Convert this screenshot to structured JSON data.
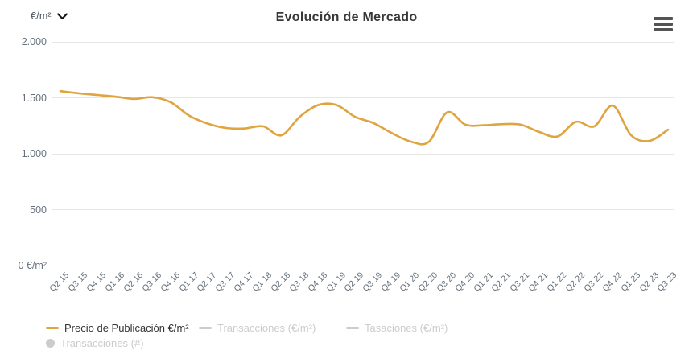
{
  "header": {
    "unit_selector": "€/m²"
  },
  "chart_data": {
    "type": "line",
    "title": "Evolución de Mercado",
    "xlabel": "",
    "ylabel": "€/m²",
    "grid": true,
    "legend_position": "bottom-left",
    "x_label_rotation": -45,
    "ylim": [
      0,
      2000
    ],
    "yticks": [
      {
        "value": 2000,
        "label": "2.000"
      },
      {
        "value": 1500,
        "label": "1.500"
      },
      {
        "value": 1000,
        "label": "1.000"
      },
      {
        "value": 500,
        "label": "500"
      },
      {
        "value": 0,
        "label": "0 €/m²"
      }
    ],
    "categories": [
      "Q2 15",
      "Q3 15",
      "Q4 15",
      "Q1 16",
      "Q2 16",
      "Q3 16",
      "Q4 16",
      "Q1 17",
      "Q2 17",
      "Q3 17",
      "Q4 17",
      "Q1 18",
      "Q2 18",
      "Q3 18",
      "Q4 18",
      "Q1 19",
      "Q2 19",
      "Q3 19",
      "Q4 19",
      "Q1 20",
      "Q2 20",
      "Q3 20",
      "Q4 20",
      "Q1 21",
      "Q2 21",
      "Q3 21",
      "Q4 21",
      "Q1 22",
      "Q2 22",
      "Q3 22",
      "Q4 22",
      "Q1 23",
      "Q2 23",
      "Q3 23"
    ],
    "series": [
      {
        "name": "Precio de Publicación €/m²",
        "visible": true,
        "marker": "line",
        "color": "#dfa43e",
        "values": [
          1560,
          1540,
          1525,
          1510,
          1490,
          1505,
          1460,
          1340,
          1270,
          1230,
          1225,
          1245,
          1165,
          1330,
          1435,
          1435,
          1330,
          1275,
          1185,
          1110,
          1105,
          1370,
          1260,
          1255,
          1265,
          1260,
          1195,
          1155,
          1285,
          1245,
          1430,
          1165,
          1115,
          1215
        ]
      },
      {
        "name": "Transacciones (€/m²)",
        "visible": false,
        "marker": "line",
        "color": "#cccccc",
        "values": []
      },
      {
        "name": "Tasaciones (€/m²)",
        "visible": false,
        "marker": "line",
        "color": "#cccccc",
        "values": []
      },
      {
        "name": "Transacciones (#)",
        "visible": false,
        "marker": "circle",
        "color": "#cccccc",
        "values": []
      }
    ]
  },
  "colors": {
    "accent": "#dfa43e",
    "inactive_legend": "#cccccc",
    "grid": "#e7e7e7",
    "zero_axis_line": "#ccd6eb",
    "title_text": "#383838",
    "axis_text": "#66707c",
    "active_legend_text": "#333333"
  }
}
